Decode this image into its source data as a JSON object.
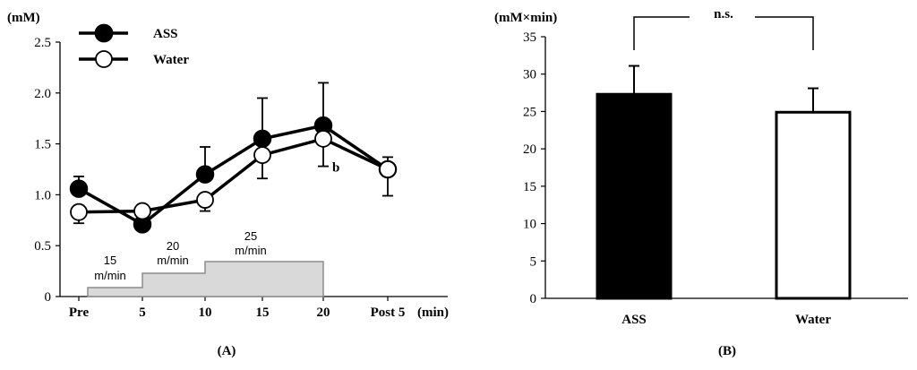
{
  "chart_data": [
    {
      "type": "line",
      "panel_label": "(A)",
      "ylabel": "(mM)",
      "xlabel": "(min)",
      "ylim": [
        0,
        2.5
      ],
      "yticks": [
        "0",
        "0.5",
        "1.0",
        "1.5",
        "2.0",
        "2.5"
      ],
      "yticks_values": [
        0,
        0.5,
        1.0,
        1.5,
        2.0,
        2.5
      ],
      "categories": [
        "Pre",
        "5",
        "10",
        "15",
        "20",
        "Post 5"
      ],
      "legend": {
        "placement": "top-left"
      },
      "series": [
        {
          "name": "ASS",
          "marker": "filled",
          "color": "#000000",
          "values": [
            1.06,
            0.71,
            1.2,
            1.55,
            1.68,
            1.25
          ],
          "errors": [
            0.12,
            0.05,
            0.27,
            0.4,
            0.42,
            0.12
          ]
        },
        {
          "name": "Water",
          "marker": "open",
          "color": "#000000",
          "values": [
            0.83,
            0.84,
            0.95,
            1.39,
            1.55,
            1.25
          ],
          "errors": [
            0.11,
            0.07,
            0.11,
            0.23,
            0.27,
            0.26
          ]
        }
      ],
      "annotations": [
        {
          "text": "b",
          "category": "20",
          "y": 1.28
        }
      ],
      "speed_protocol": [
        {
          "line1": "15",
          "line2": "m/min",
          "from": "Pre",
          "to": "5",
          "level": 1
        },
        {
          "line1": "20",
          "line2": "m/min",
          "from": "5",
          "to": "10",
          "level": 2
        },
        {
          "line1": "25",
          "line2": "m/min",
          "from": "10",
          "to": "20",
          "level": 3
        }
      ],
      "speed_protocol_color": "#d9d9d9"
    },
    {
      "type": "bar",
      "panel_label": "(B)",
      "ylabel": "(mM×min)",
      "ylim": [
        0,
        35
      ],
      "yticks": [
        "0",
        "5",
        "10",
        "15",
        "20",
        "25",
        "30",
        "35"
      ],
      "yticks_values": [
        0,
        5,
        10,
        15,
        20,
        25,
        30,
        35
      ],
      "categories": [
        "ASS",
        "Water"
      ],
      "values": [
        27.3,
        24.9
      ],
      "errors": [
        3.8,
        3.2
      ],
      "bar_fills": [
        "#000000",
        "#ffffff"
      ],
      "significance": {
        "text": "n.s.",
        "between": [
          "ASS",
          "Water"
        ]
      }
    }
  ]
}
